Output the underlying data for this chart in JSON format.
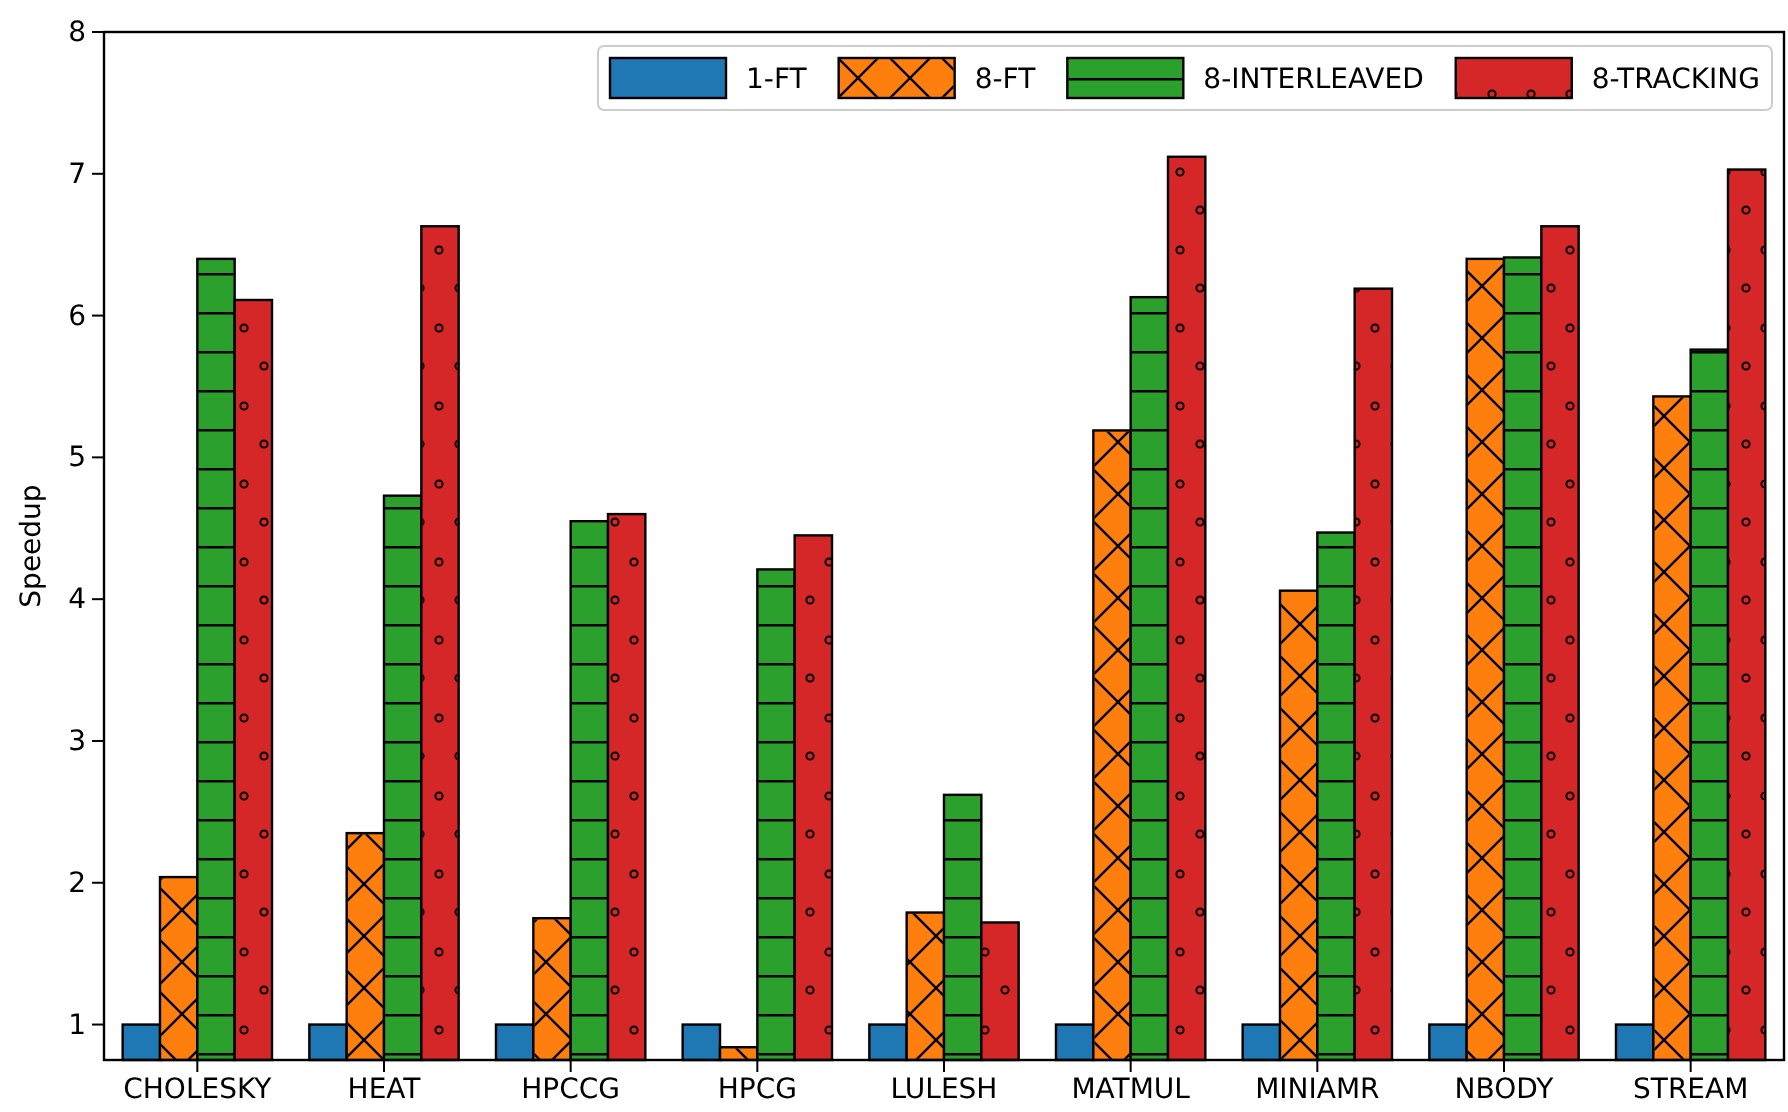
{
  "chart_data": {
    "type": "bar",
    "ylabel": "Speedup",
    "categories": [
      "CHOLESKY",
      "HEAT",
      "HPCCG",
      "HPCG",
      "LULESH",
      "MATMUL",
      "MINIAMR",
      "NBODY",
      "STREAM"
    ],
    "series": [
      {
        "name": "1-FT",
        "color": "#1f77b4",
        "values": [
          1,
          1,
          1,
          1,
          1,
          1,
          1,
          1,
          1
        ]
      },
      {
        "name": "8-FT",
        "color": "#ff7f0e",
        "values": [
          2.04,
          2.35,
          1.75,
          0.84,
          1.79,
          5.19,
          4.06,
          6.4,
          5.43
        ]
      },
      {
        "name": "8-INTERLEAVED",
        "color": "#2ca02c",
        "values": [
          6.4,
          4.73,
          4.55,
          4.21,
          2.62,
          6.13,
          4.47,
          6.41,
          5.76
        ]
      },
      {
        "name": "8-TRACKING",
        "color": "#d62728",
        "values": [
          6.11,
          6.63,
          4.6,
          4.45,
          1.72,
          7.12,
          6.19,
          6.63,
          7.03
        ]
      }
    ],
    "ylim": [
      0.75,
      8
    ],
    "yticks": [
      1,
      2,
      3,
      4,
      5,
      6,
      7,
      8
    ],
    "grid": false,
    "legend": "top right"
  }
}
